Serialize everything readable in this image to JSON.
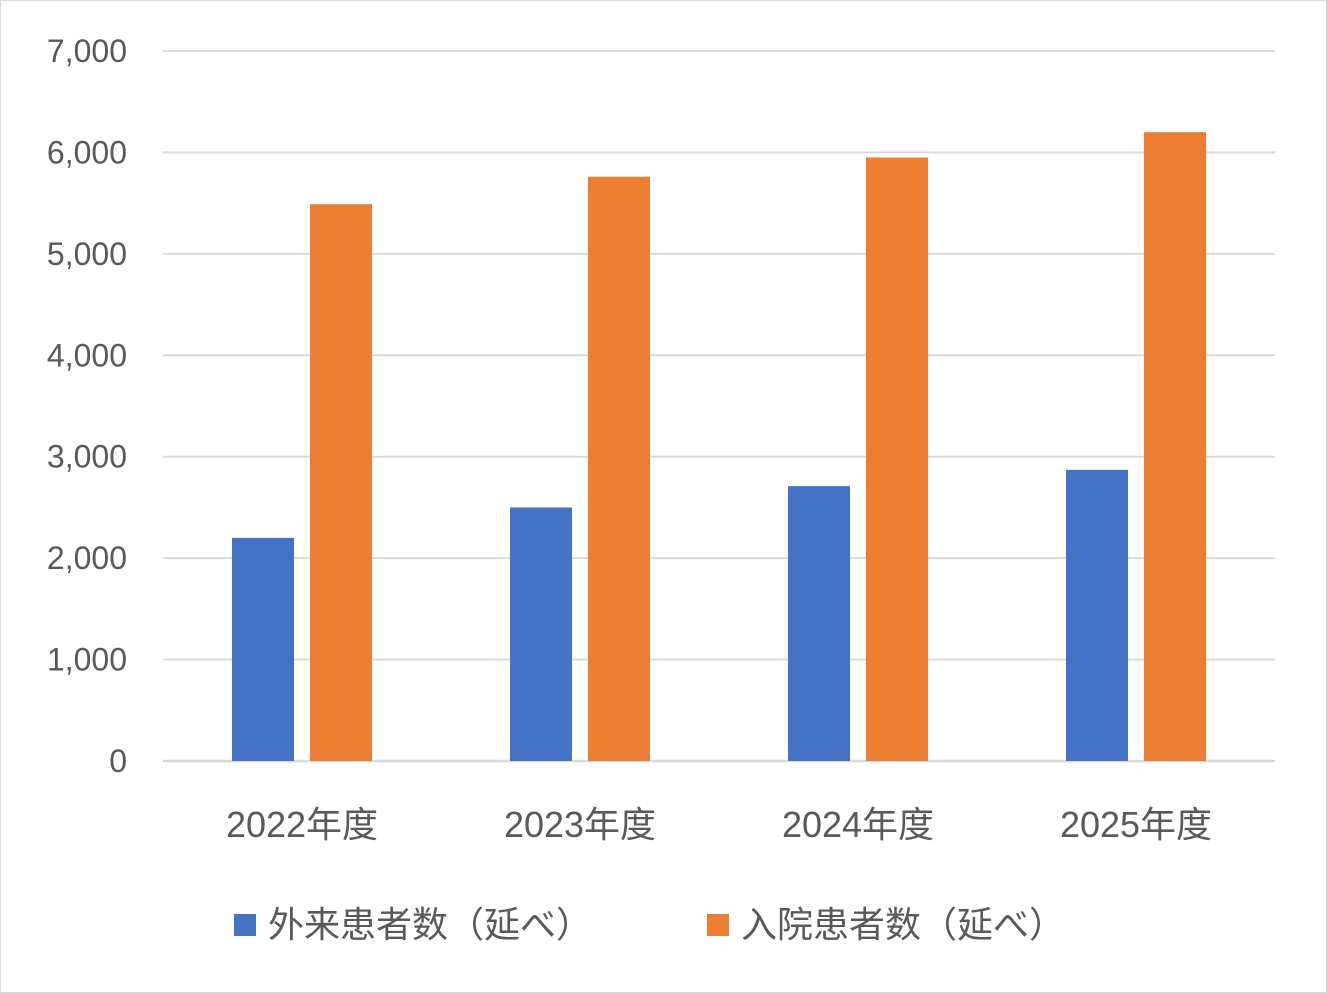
{
  "chart_data": {
    "type": "bar",
    "title": "",
    "xlabel": "",
    "ylabel": "",
    "categories": [
      "2022年度",
      "2023年度",
      "2024年度",
      "2025年度"
    ],
    "series": [
      {
        "name": "外来患者数（延べ）",
        "color": "#4472c4",
        "values": [
          2200,
          2500,
          2710,
          2870
        ]
      },
      {
        "name": "入院患者数（延べ）",
        "color": "#ed7d31",
        "values": [
          5490,
          5760,
          5950,
          6200
        ]
      }
    ],
    "ylim": [
      0,
      7000
    ],
    "yticks": [
      0,
      1000,
      2000,
      3000,
      4000,
      5000,
      6000,
      7000
    ],
    "ytick_labels": [
      "0",
      "1,000",
      "2,000",
      "3,000",
      "4,000",
      "5,000",
      "6,000",
      "7,000"
    ],
    "grid": true,
    "gridline_color": "#d9d9d9",
    "legend_position": "bottom"
  }
}
